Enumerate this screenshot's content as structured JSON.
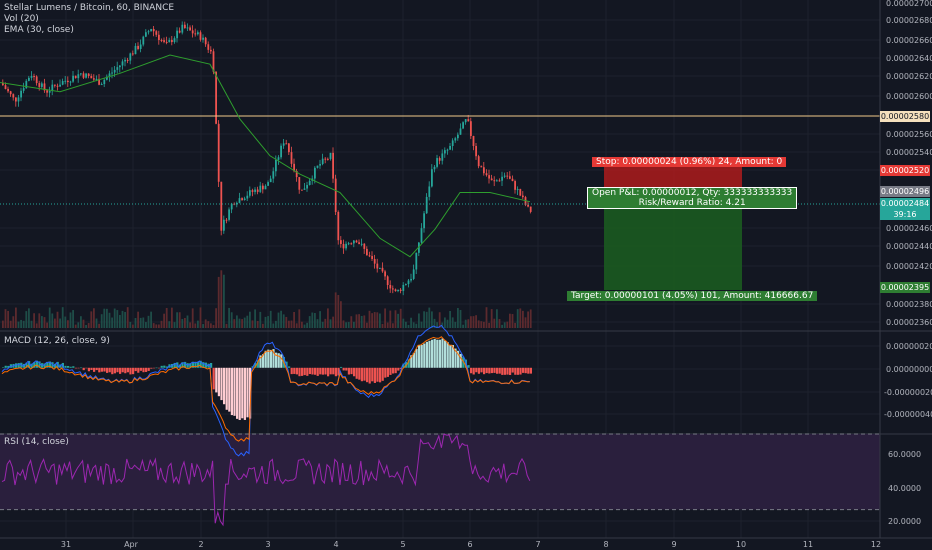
{
  "legend": {
    "main": "Stellar Lumens / Bitcoin, 60, BINANCE",
    "vol": "Vol (20)",
    "ema": "EMA (30, close)",
    "macd": "MACD (12, 26, close, 9)",
    "rsi": "RSI (14, close)"
  },
  "price_axis": [
    "0.00002700",
    "0.00002680",
    "0.00002660",
    "0.00002640",
    "0.00002620",
    "0.00002600",
    "0.00002560",
    "0.00002540",
    "0.00002460",
    "0.00002440",
    "0.00002420",
    "0.00002380",
    "0.00002360"
  ],
  "macd_axis": [
    "0.00000020",
    "0.00000000",
    "-0.00000020",
    "-0.00000040"
  ],
  "rsi_axis": [
    "60.0000",
    "40.0000",
    "20.0000"
  ],
  "time_axis": [
    "31",
    "Apr",
    "2",
    "3",
    "4",
    "5",
    "6",
    "7",
    "8",
    "9",
    "10",
    "11",
    "12"
  ],
  "price_tags": {
    "resistance": "0.00002580",
    "stop": "0.00002520",
    "ema_value": "0.00002496",
    "last_price": "0.00002484",
    "countdown": "39:16",
    "target": "0.00002395"
  },
  "position_box": {
    "stop_label": "Stop: 0.00000024 (0.96%) 24, Amount: 0",
    "open_label_1": "Open P&L: 0.00000012, Qty: 333333333333",
    "open_label_2": "Risk/Reward Ratio: 4.21",
    "target_label": "Target: 0.00000101 (4.05%) 101, Amount: 416666.67"
  },
  "colors": {
    "background": "#131722",
    "up": "#26a69a",
    "down": "#ef5350",
    "ema": "#2e9e2e",
    "resistance": "#f0c98a",
    "stop_zone": "#b71c1c",
    "target_zone": "#1b5e20",
    "rsi_band": "#2a1f3d",
    "rsi_line": "#9c27b0"
  },
  "chart_data": {
    "type": "candlestick",
    "symbol": "XLMBTC",
    "interval": "60",
    "ylim": [
      2.35e-05,
      2.71e-05
    ],
    "price_path": [
      [
        0,
        2.62e-05
      ],
      [
        14,
        2.6e-05
      ],
      [
        30,
        2.63e-05
      ],
      [
        45,
        2.61e-05
      ],
      [
        60,
        2.62e-05
      ],
      [
        80,
        2.63e-05
      ],
      [
        100,
        2.62e-05
      ],
      [
        120,
        2.64e-05
      ],
      [
        138,
        2.66e-05
      ],
      [
        150,
        2.68e-05
      ],
      [
        165,
        2.66e-05
      ],
      [
        182,
        2.68e-05
      ],
      [
        200,
        2.67e-05
      ],
      [
        212,
        2.65e-05
      ],
      [
        220,
        2.46e-05
      ],
      [
        232,
        2.49e-05
      ],
      [
        250,
        2.5e-05
      ],
      [
        268,
        2.51e-05
      ],
      [
        284,
        2.56e-05
      ],
      [
        300,
        2.5e-05
      ],
      [
        318,
        2.53e-05
      ],
      [
        330,
        2.54e-05
      ],
      [
        338,
        2.44e-05
      ],
      [
        355,
        2.45e-05
      ],
      [
        375,
        2.42e-05
      ],
      [
        395,
        2.39e-05
      ],
      [
        412,
        2.41e-05
      ],
      [
        422,
        2.47e-05
      ],
      [
        432,
        2.53e-05
      ],
      [
        450,
        2.55e-05
      ],
      [
        466,
        2.58e-05
      ],
      [
        478,
        2.53e-05
      ],
      [
        492,
        2.51e-05
      ],
      [
        505,
        2.52e-05
      ],
      [
        518,
        2.5e-05
      ],
      [
        528,
        2.48e-05
      ]
    ],
    "ema_path": [
      [
        0,
        2.62e-05
      ],
      [
        60,
        2.61e-05
      ],
      [
        120,
        2.63e-05
      ],
      [
        170,
        2.65e-05
      ],
      [
        210,
        2.64e-05
      ],
      [
        240,
        2.58e-05
      ],
      [
        270,
        2.54e-05
      ],
      [
        300,
        2.52e-05
      ],
      [
        340,
        2.5e-05
      ],
      [
        380,
        2.45e-05
      ],
      [
        410,
        2.43e-05
      ],
      [
        435,
        2.46e-05
      ],
      [
        460,
        2.5e-05
      ],
      [
        490,
        2.5e-05
      ],
      [
        530,
        2.49e-05
      ]
    ],
    "levels": {
      "resistance": 2.58e-05,
      "stop": 2.52e-05,
      "entry": 2.484e-05,
      "target": 2.395e-05
    },
    "macd_ylim": [
      -4.5e-07,
      2.5e-07
    ],
    "rsi_ylim": [
      15,
      70
    ],
    "rsi_bands": [
      70,
      30
    ]
  }
}
